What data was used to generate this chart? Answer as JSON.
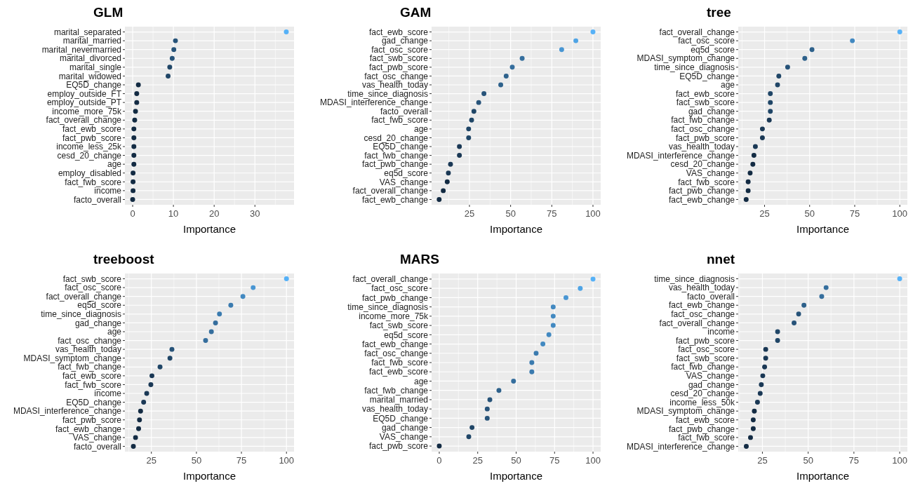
{
  "chart_data": [
    {
      "type": "scatter",
      "orientation": "horizontal",
      "title": "GLM",
      "xlabel": "Importance",
      "grid": true,
      "marker": "circle",
      "categories": [
        "marital_separated",
        "marital_married",
        "marital_nevermarried",
        "marital_divorced",
        "marital_single",
        "marital_widowed",
        "EQ5D_change",
        "employ_outside_FT",
        "employ_outside_PT",
        "income_more_75k",
        "fact_overall_change",
        "fact_ewb_score",
        "fact_pwb_score",
        "income_less_25k",
        "cesd_20_change",
        "age",
        "employ_disabled",
        "fact_fwb_score",
        "income",
        "facto_overall"
      ],
      "values": [
        37.7,
        10.5,
        10.1,
        9.7,
        9.1,
        8.7,
        1.4,
        1.0,
        1.0,
        0.7,
        0.5,
        0.3,
        0.3,
        0.3,
        0.3,
        0.3,
        0.1,
        0.1,
        0.1,
        0.0
      ],
      "colors": [
        "#56b1f7",
        "#275379",
        "#275379",
        "#275379",
        "#204667",
        "#204667",
        "#132b43",
        "#132b43",
        "#132b43",
        "#132b43",
        "#132b43",
        "#132b43",
        "#132b43",
        "#132b43",
        "#132b43",
        "#132b43",
        "#132b43",
        "#132b43",
        "#132b43",
        "#132b43"
      ],
      "xlim": [
        -1.9,
        39.6
      ],
      "xticks": [
        0,
        10,
        20,
        30
      ]
    },
    {
      "type": "scatter",
      "orientation": "horizontal",
      "title": "GAM",
      "xlabel": "Importance",
      "grid": true,
      "marker": "circle",
      "categories": [
        "fact_ewb_score",
        "gad_change",
        "fact_osc_score",
        "fact_swb_score",
        "fact_pwb_score",
        "fact_osc_change",
        "vas_health_today",
        "time_since_diagnosis",
        "MDASI_interference_change",
        "facto_overall",
        "fact_fwb_score",
        "age",
        "cesd_20_change",
        "EQ5D_change",
        "fact_fwb_change",
        "fact_pwb_change",
        "eq5d_score",
        "VAS_change",
        "fact_overall_change",
        "fact_ewb_change"
      ],
      "values": [
        100,
        89.6,
        81,
        57,
        51,
        47.3,
        44,
        33.8,
        30.6,
        27.7,
        26.3,
        24.5,
        24.5,
        18.9,
        18.9,
        13.5,
        12.2,
        11.5,
        9.1,
        6.6
      ],
      "colors": [
        "#56b1f7",
        "#4fa4e5",
        "#4996d3",
        "#356e9d",
        "#356e9d",
        "#2e618b",
        "#2e618b",
        "#275379",
        "#275379",
        "#204667",
        "#204667",
        "#204667",
        "#204667",
        "#1a3855",
        "#1a3855",
        "#1a3855",
        "#1a3855",
        "#132b43",
        "#132b43",
        "#132b43"
      ],
      "xlim": [
        2.0,
        104.7
      ],
      "xticks": [
        25,
        50,
        75,
        100
      ]
    },
    {
      "type": "scatter",
      "orientation": "horizontal",
      "title": "tree",
      "xlabel": "Importance",
      "grid": true,
      "marker": "circle",
      "categories": [
        "fact_overall_change",
        "fact_osc_score",
        "eq5d_score",
        "MDASI_symptom_change",
        "time_since_diagnosis",
        "EQ5D_change",
        "age",
        "fact_ewb_score",
        "fact_swb_score",
        "gad_change",
        "fact_fwb_change",
        "fact_osc_change",
        "fact_pwb_score",
        "vas_health_today",
        "MDASI_interference_change",
        "cesd_20_change",
        "VAS_change",
        "fact_fwb_score",
        "fact_pwb_change",
        "fact_ewb_change"
      ],
      "values": [
        100,
        73.7,
        51.3,
        47.3,
        37.8,
        32.9,
        32.2,
        28.2,
        28.2,
        28.2,
        27.6,
        23.8,
        23.8,
        19.9,
        19.1,
        18.5,
        17,
        15.9,
        15.9,
        14.8
      ],
      "colors": [
        "#56b1f7",
        "#4289c1",
        "#2e618b",
        "#2e618b",
        "#275379",
        "#204667",
        "#204667",
        "#204667",
        "#204667",
        "#204667",
        "#1a3855",
        "#1a3855",
        "#1a3855",
        "#1a3855",
        "#132b43",
        "#132b43",
        "#132b43",
        "#132b43",
        "#132b43",
        "#132b43"
      ],
      "xlim": [
        10.4,
        104.2
      ],
      "xticks": [
        25,
        50,
        75,
        100
      ]
    },
    {
      "type": "scatter",
      "orientation": "horizontal",
      "title": "treeboost",
      "xlabel": "Importance",
      "grid": true,
      "marker": "circle",
      "categories": [
        "fact_swb_score",
        "fact_osc_score",
        "fact_overall_change",
        "eq5d_score",
        "time_since_diagnosis",
        "gad_change",
        "age",
        "fact_osc_change",
        "vas_health_today",
        "MDASI_symptom_change",
        "fact_fwb_change",
        "fact_ewb_score",
        "fact_fwb_score",
        "income",
        "EQ5D_change",
        "MDASI_interference_change",
        "fact_pwb_score",
        "fact_ewb_change",
        "VAS_change",
        "facto_overall"
      ],
      "values": [
        100,
        81.5,
        75.8,
        69.1,
        62.8,
        60.6,
        58.3,
        55.1,
        36.4,
        35.3,
        29.8,
        25.3,
        24.7,
        22.4,
        20.7,
        19,
        18.4,
        17.9,
        16.2,
        15
      ],
      "colors": [
        "#56b1f7",
        "#4996d3",
        "#4289c1",
        "#3b7baf",
        "#3b7baf",
        "#356e9d",
        "#356e9d",
        "#356e9d",
        "#275379",
        "#204667",
        "#204667",
        "#1a3855",
        "#1a3855",
        "#1a3855",
        "#1a3855",
        "#132b43",
        "#132b43",
        "#132b43",
        "#132b43",
        "#132b43"
      ],
      "xlim": [
        10.3,
        104.2
      ],
      "xticks": [
        25,
        50,
        75,
        100
      ]
    },
    {
      "type": "scatter",
      "orientation": "horizontal",
      "title": "MARS",
      "xlabel": "Importance",
      "grid": true,
      "marker": "circle",
      "categories": [
        "fact_overall_change",
        "fact_osc_score",
        "fact_pwb_change",
        "time_since_diagnosis",
        "income_more_75k",
        "fact_swb_score",
        "eq5d_score",
        "fact_ewb_change",
        "fact_osc_change",
        "fact_fwb_score",
        "fact_ewb_score",
        "age",
        "fact_fwb_change",
        "marital_married",
        "vas_health_today",
        "EQ5D_change",
        "gad_change",
        "VAS_change",
        "fact_pwb_score"
      ],
      "values": [
        100,
        91.7,
        82.4,
        74.1,
        74.1,
        74.1,
        71.3,
        67.4,
        63,
        60.2,
        60.2,
        48.3,
        38.8,
        32.9,
        31.2,
        31.2,
        21.3,
        19.2,
        0
      ],
      "colors": [
        "#56b1f7",
        "#4fa4e5",
        "#4996d3",
        "#4289c1",
        "#4289c1",
        "#4289c1",
        "#4289c1",
        "#4289c1",
        "#3b7baf",
        "#3b7baf",
        "#3b7baf",
        "#356e9d",
        "#2e618b",
        "#275379",
        "#275379",
        "#275379",
        "#204667",
        "#204667",
        "#132b43"
      ],
      "xlim": [
        -5,
        105
      ],
      "xticks": [
        0,
        25,
        50,
        75,
        100
      ]
    },
    {
      "type": "scatter",
      "orientation": "horizontal",
      "title": "nnet",
      "xlabel": "Importance",
      "grid": true,
      "marker": "circle",
      "categories": [
        "time_since_diagnosis",
        "vas_health_today",
        "facto_overall",
        "fact_ewb_change",
        "fact_osc_change",
        "fact_overall_change",
        "income",
        "fact_pwb_score",
        "fact_osc_score",
        "fact_swb_score",
        "fact_fwb_change",
        "VAS_change",
        "gad_change",
        "cesd_20_change",
        "income_less_50k",
        "MDASI_symptom_change",
        "fact_ewb_score",
        "fact_pwb_change",
        "fact_fwb_score",
        "MDASI_interference_change"
      ],
      "values": [
        100,
        59.8,
        57.4,
        47.7,
        44.8,
        42.3,
        33.3,
        33.3,
        26.8,
        26.8,
        26.2,
        25.2,
        24.4,
        23.8,
        22.3,
        20.6,
        20,
        20,
        18.5,
        16.2
      ],
      "colors": [
        "#56b1f7",
        "#356e9d",
        "#356e9d",
        "#2e618b",
        "#275379",
        "#275379",
        "#204667",
        "#204667",
        "#1a3855",
        "#1a3855",
        "#1a3855",
        "#1a3855",
        "#1a3855",
        "#1a3855",
        "#1a3855",
        "#132b43",
        "#132b43",
        "#132b43",
        "#132b43",
        "#132b43"
      ],
      "xlim": [
        11.8,
        104.2
      ],
      "xticks": [
        25,
        50,
        75,
        100
      ]
    }
  ]
}
